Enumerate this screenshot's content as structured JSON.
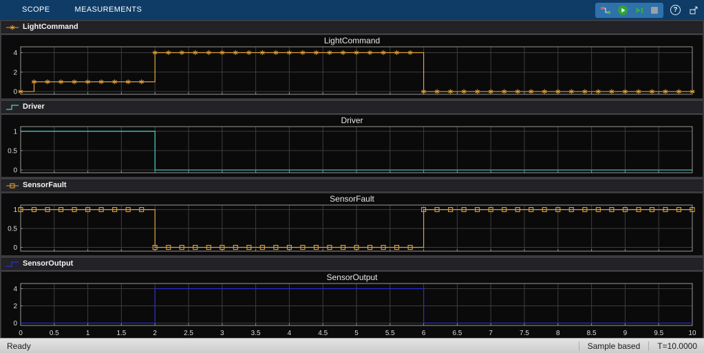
{
  "toolbar": {
    "tabs": [
      {
        "label": "SCOPE"
      },
      {
        "label": "MEASUREMENTS"
      }
    ],
    "icons": [
      {
        "name": "highlight-simulink-block"
      },
      {
        "name": "run"
      },
      {
        "name": "step-forward"
      },
      {
        "name": "stop"
      },
      {
        "name": "help",
        "glyph": "?"
      },
      {
        "name": "dock"
      }
    ]
  },
  "chart_data": [
    {
      "type": "line",
      "name": "LightCommand",
      "title": "LightCommand",
      "color": "#e3a23b",
      "marker": "asterisk",
      "marker_period": 0.2,
      "steps": [
        {
          "from": 0,
          "to": 0.2,
          "value": 0
        },
        {
          "from": 0.2,
          "to": 2,
          "value": 1
        },
        {
          "from": 2,
          "to": 6,
          "value": 4
        },
        {
          "from": 6,
          "to": 10,
          "value": 0
        }
      ],
      "xlim": [
        0,
        10
      ],
      "ylim": [
        -0.28,
        4.6
      ],
      "yticks": [
        0,
        2,
        4
      ],
      "grid_x_step": 0.5,
      "show_x_labels": false
    },
    {
      "type": "line",
      "name": "Driver",
      "title": "Driver",
      "color": "#43d7c6",
      "marker": null,
      "marker_period": null,
      "steps": [
        {
          "from": 0,
          "to": 2,
          "value": 1
        },
        {
          "from": 2,
          "to": 10,
          "value": 0
        }
      ],
      "xlim": [
        0,
        10
      ],
      "ylim": [
        -0.07,
        1.12
      ],
      "yticks": [
        0,
        0.5,
        1
      ],
      "grid_x_step": 0.5,
      "show_x_labels": false
    },
    {
      "type": "line",
      "name": "SensorFault",
      "title": "SensorFault",
      "color": "#e3a23b",
      "marker": "square",
      "marker_period": 0.2,
      "steps": [
        {
          "from": 0,
          "to": 2,
          "value": 1
        },
        {
          "from": 2,
          "to": 6,
          "value": 0
        },
        {
          "from": 6,
          "to": 10,
          "value": 1
        }
      ],
      "xlim": [
        0,
        10
      ],
      "ylim": [
        -0.1,
        1.12
      ],
      "yticks": [
        0,
        0.5,
        1
      ],
      "grid_x_step": 0.5,
      "show_x_labels": false
    },
    {
      "type": "line",
      "name": "SensorOutput",
      "title": "SensorOutput",
      "color": "#2b2bd7",
      "marker": null,
      "marker_period": null,
      "steps": [
        {
          "from": 0,
          "to": 2,
          "value": 0
        },
        {
          "from": 2,
          "to": 6,
          "value": 4
        },
        {
          "from": 6,
          "to": 10,
          "value": 0
        }
      ],
      "xlim": [
        0,
        10
      ],
      "ylim": [
        -0.28,
        4.6
      ],
      "yticks": [
        0,
        2,
        4
      ],
      "grid_x_step": 0.5,
      "show_x_labels": true,
      "xtick_labels": [
        "0",
        "0.5",
        "1",
        "1.5",
        "2",
        "2.5",
        "3",
        "3.5",
        "4",
        "4.5",
        "5",
        "5.5",
        "6",
        "6.5",
        "7",
        "7.5",
        "8",
        "8.5",
        "9",
        "9.5",
        "10"
      ]
    }
  ],
  "status_bar": {
    "ready": "Ready",
    "sample_mode": "Sample based",
    "sim_time": "T=10.0000"
  },
  "colors": {
    "toolstrip": "#0e3c67",
    "cluster": "#2f71aa",
    "plot_bg": "#0b0b0b",
    "grid": "#3d3d3d",
    "axes_border": "#9a9a9a",
    "window_bg": "#3c3c40",
    "status_bg": "#d6d6d6",
    "run_green": "#2fa33a"
  }
}
